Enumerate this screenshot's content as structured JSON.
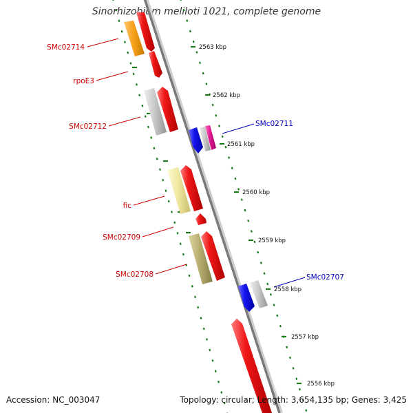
{
  "title": "Sinorhizobium meliloti 1021, complete genome",
  "accession": "Accession: NC_003047",
  "stats": "Topology: circular; Length: 3,654,135 bp; Genes: 3,425",
  "colors": {
    "forward_strand": "#e81010",
    "reverse_strand": "#1010e8",
    "label_left": "#cc0000",
    "label_right": "#0000bb",
    "backbone": "#808080",
    "ticks": "#1a7a1a"
  },
  "ruler": {
    "unit": "kbp",
    "ticks": [
      "2563 kbp",
      "2562 kbp",
      "2561 kbp",
      "2560 kbp",
      "2559 kbp",
      "2558 kbp",
      "2557 kbp",
      "2556 kbp"
    ]
  },
  "genes": [
    {
      "name": "SMc02714",
      "color": "#f7a21b"
    },
    {
      "name": "rpoE3",
      "color": "#e81010"
    },
    {
      "name": "SMc02712",
      "color": "#c8c8c8"
    },
    {
      "name": "SMc02711",
      "color": "#e01890"
    },
    {
      "name": "fic",
      "color": "#f0e8a0"
    },
    {
      "name": "SMc02709",
      "color": "#e81010"
    },
    {
      "name": "SMc02708",
      "color": "#b8ae70"
    },
    {
      "name": "SMc02707",
      "color": "#c8c8c8"
    }
  ]
}
